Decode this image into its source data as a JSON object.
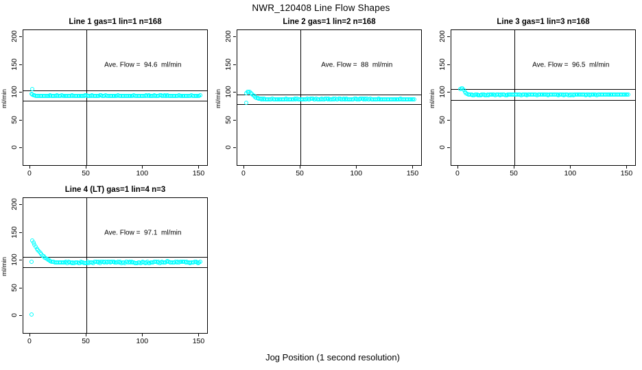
{
  "page": {
    "main_title": "NWR_120408  Line Flow Shapes",
    "shared_x_label": "Jog Position (1 second resolution)",
    "background_color": "#FFFFFF",
    "point_color": "#00FFFF",
    "axis_color": "#000000"
  },
  "chart_data": [
    {
      "type": "scatter",
      "title": "Line 1 gas=1 lin=1 n=168",
      "line": "Line 1",
      "gas": 1,
      "lin": 1,
      "n": 168,
      "ylabel": "ml/min",
      "annotation": "Ave. Flow =  94.6  ml/min",
      "ave_flow_ml_min": 94.6,
      "x_ticks": [
        0,
        50,
        100,
        150
      ],
      "y_ticks": [
        0,
        50,
        100,
        150,
        200
      ],
      "xlim": [
        -6,
        157
      ],
      "ylim": [
        -31,
        213
      ],
      "vline_x": 50,
      "ref_lines_y": [
        104.1,
        85.1
      ],
      "annotation_pos": {
        "x": 100,
        "y": 150
      },
      "series": {
        "marker": "open-circle",
        "outliers": [
          [
            2,
            106.5
          ]
        ],
        "decay": [
          [
            1,
            97.5
          ],
          [
            2,
            96.8
          ],
          [
            3,
            95.8
          ],
          [
            4,
            95.0
          ]
        ],
        "steady": {
          "from": 5,
          "to": 151,
          "value": 94.2,
          "noise": 0.7,
          "seed": 1
        }
      }
    },
    {
      "type": "scatter",
      "title": "Line 2 gas=1 lin=2 n=168",
      "line": "Line 2",
      "gas": 1,
      "lin": 2,
      "n": 168,
      "ylabel": "ml/min",
      "annotation": "Ave. Flow =  88  ml/min",
      "ave_flow_ml_min": 88,
      "x_ticks": [
        0,
        50,
        100,
        150
      ],
      "y_ticks": [
        0,
        50,
        100,
        150,
        200
      ],
      "xlim": [
        -6,
        157
      ],
      "ylim": [
        -31,
        213
      ],
      "vline_x": 50,
      "ref_lines_y": [
        96.8,
        79.2
      ],
      "annotation_pos": {
        "x": 100,
        "y": 150
      },
      "series": {
        "marker": "open-circle",
        "outliers": [
          [
            2,
            82
          ]
        ],
        "decay": [
          [
            2,
            99
          ],
          [
            3,
            101.5
          ],
          [
            4,
            102
          ],
          [
            5,
            101
          ],
          [
            6,
            99.5
          ],
          [
            7,
            97.5
          ],
          [
            8,
            95.5
          ],
          [
            9,
            93.5
          ],
          [
            10,
            92
          ],
          [
            11,
            90.8
          ],
          [
            12,
            89.8
          ],
          [
            13,
            89.2
          ],
          [
            14,
            88.8
          ],
          [
            15,
            88.5
          ]
        ],
        "steady": {
          "from": 16,
          "to": 151,
          "value": 88.2,
          "noise": 0.6,
          "seed": 2
        }
      }
    },
    {
      "type": "scatter",
      "title": "Line 3 gas=1 lin=3 n=168",
      "line": "Line 3",
      "gas": 1,
      "lin": 3,
      "n": 168,
      "ylabel": "ml/min",
      "annotation": "Ave. Flow =  96.5  ml/min",
      "ave_flow_ml_min": 96.5,
      "x_ticks": [
        0,
        50,
        100,
        150
      ],
      "y_ticks": [
        0,
        50,
        100,
        150,
        200
      ],
      "xlim": [
        -6,
        157
      ],
      "ylim": [
        -31,
        213
      ],
      "vline_x": 50,
      "ref_lines_y": [
        106.2,
        86.9
      ],
      "annotation_pos": {
        "x": 100,
        "y": 150
      },
      "series": {
        "marker": "open-circle",
        "outliers": [],
        "decay": [
          [
            2,
            107
          ],
          [
            3,
            108
          ],
          [
            4,
            107.5
          ],
          [
            5,
            105
          ],
          [
            6,
            101.5
          ],
          [
            7,
            99
          ],
          [
            8,
            97.5
          ],
          [
            9,
            96.9
          ]
        ],
        "steady": {
          "from": 10,
          "to": 151,
          "value": 96.4,
          "noise": 0.7,
          "seed": 3
        }
      }
    },
    {
      "type": "scatter",
      "title": "Line 4 (LT) gas=1 lin=4 n=3",
      "line": "Line 4 (LT)",
      "gas": 1,
      "lin": 4,
      "n": 3,
      "ylabel": "ml/min",
      "annotation": "Ave. Flow =  97.1  ml/min",
      "ave_flow_ml_min": 97.1,
      "x_ticks": [
        0,
        50,
        100,
        150
      ],
      "y_ticks": [
        0,
        50,
        100,
        150,
        200
      ],
      "xlim": [
        -6,
        157
      ],
      "ylim": [
        -31,
        213
      ],
      "vline_x": 50,
      "ref_lines_y": [
        106.8,
        87.4
      ],
      "annotation_pos": {
        "x": 100,
        "y": 150
      },
      "series": {
        "marker": "open-circle",
        "outliers": [
          [
            1,
            3
          ],
          [
            1,
            97.5
          ]
        ],
        "decay": [
          [
            2,
            136
          ],
          [
            3,
            132
          ],
          [
            4,
            128.4
          ],
          [
            5,
            125
          ],
          [
            6,
            121.9
          ],
          [
            7,
            119.1
          ],
          [
            8,
            116.4
          ],
          [
            9,
            113.9
          ],
          [
            10,
            111.6
          ],
          [
            11,
            109.5
          ],
          [
            12,
            107.5
          ],
          [
            13,
            105.7
          ],
          [
            14,
            104.1
          ],
          [
            15,
            102.6
          ],
          [
            16,
            101.3
          ],
          [
            17,
            100.1
          ],
          [
            18,
            99.1
          ],
          [
            19,
            98.2
          ],
          [
            20,
            97.6
          ],
          [
            21,
            97.2
          ],
          [
            22,
            97.0
          ],
          [
            23,
            96.9
          ],
          [
            24,
            96.9
          ],
          [
            25,
            96.8
          ],
          [
            26,
            96.8
          ],
          [
            27,
            96.8
          ],
          [
            28,
            96.7
          ],
          [
            29,
            96.7
          ]
        ],
        "steady": {
          "from": 30,
          "to": 151,
          "value": 96.8,
          "noise": 1.4,
          "seed": 4,
          "wave_amp": 0.5,
          "wave_period": 9
        }
      }
    }
  ]
}
